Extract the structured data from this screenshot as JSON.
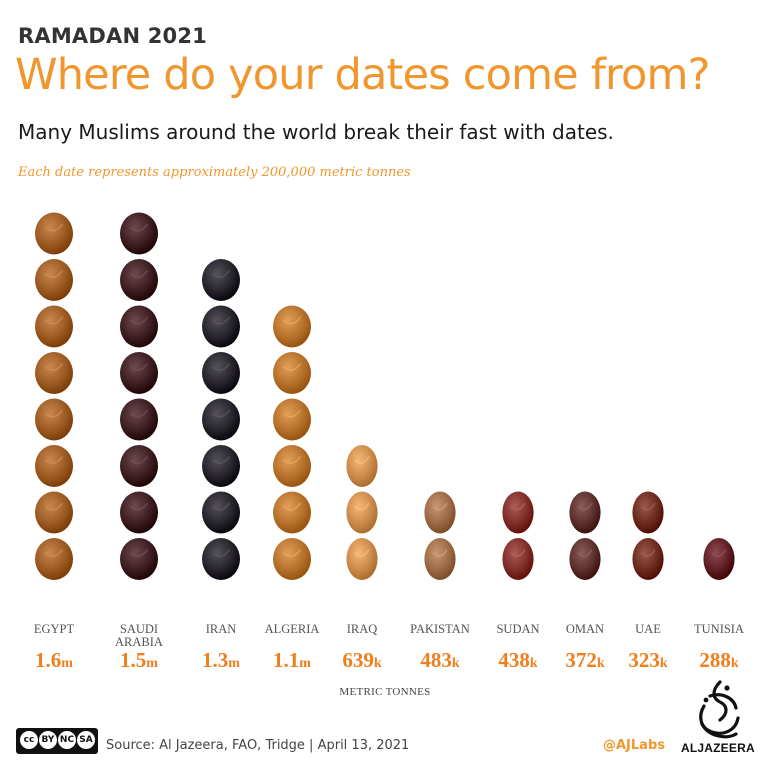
{
  "header": {
    "kicker": "RAMADAN 2021",
    "title": "Where do your dates come from?",
    "subtitle": "Many Muslims around the world break their fast with dates.",
    "note": "Each date represents approximately 200,000 metric tonnes"
  },
  "chart_data": {
    "type": "pictograph",
    "unit_per_icon": 200000,
    "xlabel": "METRIC TONNES",
    "categories": [
      "EGYPT",
      "SAUDI ARABIA",
      "IRAN",
      "ALGERIA",
      "IRAQ",
      "PAKISTAN",
      "SUDAN",
      "OMAN",
      "UAE",
      "TUNISIA"
    ],
    "values": [
      1600000,
      1500000,
      1300000,
      1100000,
      639000,
      483000,
      438000,
      372000,
      323000,
      288000
    ],
    "value_labels": [
      {
        "num": "1.6",
        "suffix": "m"
      },
      {
        "num": "1.5",
        "suffix": "m"
      },
      {
        "num": "1.3",
        "suffix": "m"
      },
      {
        "num": "1.1",
        "suffix": "m"
      },
      {
        "num": "639",
        "suffix": "k"
      },
      {
        "num": "483",
        "suffix": "k"
      },
      {
        "num": "438",
        "suffix": "k"
      },
      {
        "num": "372",
        "suffix": "k"
      },
      {
        "num": "323",
        "suffix": "k"
      },
      {
        "num": "288",
        "suffix": "k"
      }
    ],
    "icon_colors": [
      "#9a5a22",
      "#3d1d22",
      "#26232b",
      "#b5712b",
      "#c98a4a",
      "#9b6a45",
      "#7e2d28",
      "#5a2f2c",
      "#6c2a1f",
      "#5e1e23"
    ],
    "value_color": "#f07e1c"
  },
  "footer": {
    "license": [
      "cc",
      "BY",
      "NC",
      "SA"
    ],
    "source": "Source: Al Jazeera, FAO, Tridge  |  April 13, 2021",
    "handle": "@AJLabs",
    "brand": "ALJAZEERA"
  }
}
